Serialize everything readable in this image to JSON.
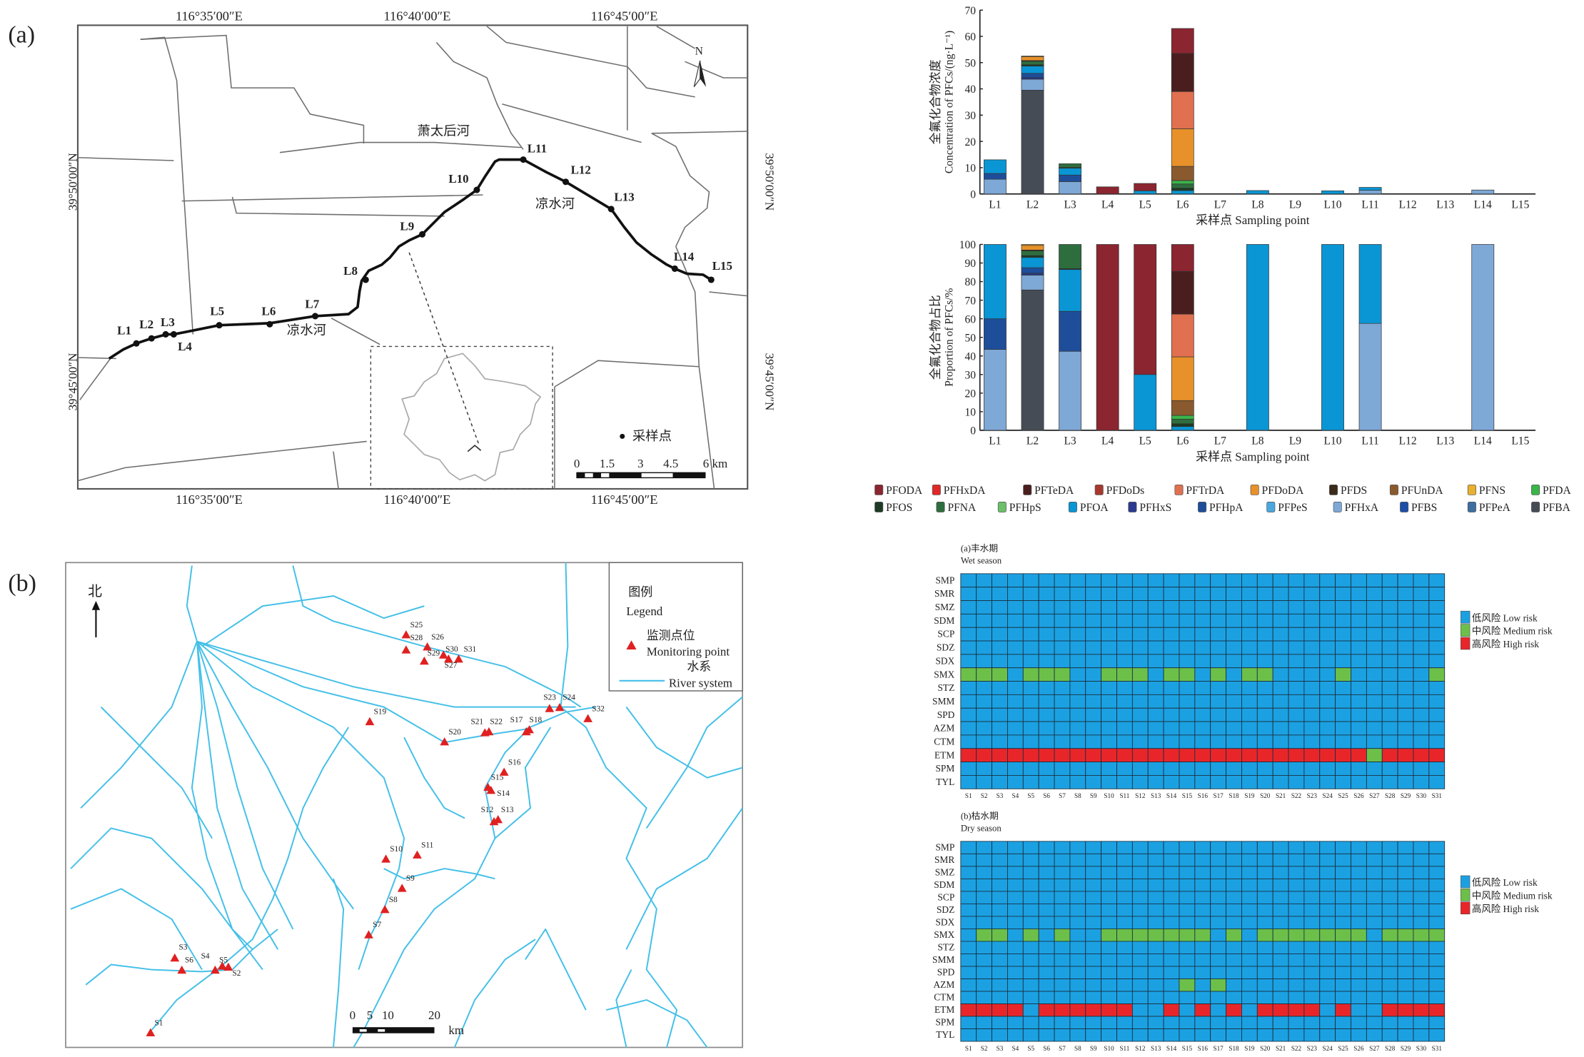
{
  "panel_labels": {
    "a": "(a)",
    "b": "(b)"
  },
  "map_a": {
    "lon_labels": [
      "116°35′00″E",
      "116°40′00″E",
      "116°45′00″E"
    ],
    "lat_labels": [
      "39°50′00″N",
      "39°45′00″N"
    ],
    "river_names": {
      "xiaotaihou": "萧太后河",
      "liangshui_east": "凉水河",
      "liangshui_west": "凉水河"
    },
    "north": "N",
    "legend_label": "采样点",
    "scale_labels": [
      "0",
      "1.5",
      "3",
      "4.5",
      "6 km"
    ],
    "stations": [
      "L1",
      "L2",
      "L3",
      "L4",
      "L5",
      "L6",
      "L7",
      "L8",
      "L9",
      "L10",
      "L11",
      "L12",
      "L13",
      "L14",
      "L15"
    ]
  },
  "map_b": {
    "north": "北",
    "legend": {
      "title_cn": "图例",
      "title_en": "Legend",
      "point_cn": "监测点位",
      "point_en": "Monitoring point",
      "river_cn": "水系",
      "river_en": "River system"
    },
    "scale_labels": [
      "0",
      "5",
      "10",
      "20",
      "km"
    ],
    "stations": [
      "S1",
      "S2",
      "S3",
      "S4",
      "S5",
      "S6",
      "S7",
      "S8",
      "S9",
      "S10",
      "S11",
      "S12",
      "S13",
      "S14",
      "S15",
      "S16",
      "S17",
      "S18",
      "S19",
      "S20",
      "S21",
      "S22",
      "S23",
      "S24",
      "S25",
      "S26",
      "S27",
      "S28",
      "S29",
      "S30",
      "S31",
      "S32"
    ],
    "colors": {
      "river": "#45c0e8",
      "point": "#e02020"
    }
  },
  "compounds": {
    "names": [
      "PFODA",
      "PFHxDA",
      "PFTeDA",
      "PFDoDs",
      "PFTrDA",
      "PFDoDA",
      "PFDS",
      "PFUnDA",
      "PFNS",
      "PFDA",
      "PFOS",
      "PFNA",
      "PFHpS",
      "PFOA",
      "PFHxS",
      "PFHpA",
      "PFPeS",
      "PFHxA",
      "PFBS",
      "PFPeA",
      "PFBA"
    ],
    "colors": [
      "#8b2530",
      "#e02828",
      "#4a1e1e",
      "#a8382e",
      "#e0704f",
      "#e8912a",
      "#3a2a1a",
      "#8a5a2e",
      "#e8b030",
      "#3ab54a",
      "#1e3a24",
      "#2e6e3e",
      "#6cc06a",
      "#0a96d4",
      "#2a3a8e",
      "#1e4e9a",
      "#4aa8e0",
      "#7ea8d6",
      "#1e4ea8",
      "#3e6ea0",
      "#464c56"
    ]
  },
  "chart_data": [
    {
      "type": "bar",
      "stacked": true,
      "ylabel_cn": "全氟化合物浓度",
      "ylabel_en": "Concentration of PFCs/(ng·L⁻¹)",
      "xlabel": "采样点 Sampling point",
      "ylim": [
        0,
        70
      ],
      "yticks": [
        "0",
        "10",
        "20",
        "30",
        "40",
        "50",
        "60",
        "70"
      ],
      "categories": [
        "L1",
        "L2",
        "L3",
        "L4",
        "L5",
        "L6",
        "L7",
        "L8",
        "L9",
        "L10",
        "L11",
        "L12",
        "L13",
        "L14",
        "L15"
      ],
      "stacks": [
        {
          "PFHxA": 5.6,
          "PFHpA": 2.2,
          "PFOA": 5.2
        },
        {
          "PFBA": 39.5,
          "PFHxA": 4.2,
          "PFHxS": 0.6,
          "PFHpA": 1.6,
          "PFOA": 2.8,
          "PFOS": 0.5,
          "PFNA": 1.3,
          "PFDS": 0.3,
          "PFDoDA": 1.5,
          "PFNS": 0.2
        },
        {
          "PFHxA": 4.7,
          "PFHpA": 2.5,
          "PFOA": 2.6,
          "PFOS": 0.3,
          "PFNA": 1.4
        },
        {
          "PFODA": 2.7
        },
        {
          "PFOA": 1.2,
          "PFODA": 2.8
        },
        {
          "PFOA": 1.3,
          "PFOS": 0.9,
          "PFNA": 1.6,
          "PFDA": 1.3,
          "PFUnDA": 5.4,
          "PFDoDA": 14.3,
          "PFTrDA": 14.2,
          "PFTeDA": 14.5,
          "PFODA": 9.5
        },
        {},
        {
          "PFOA": 1.3
        },
        {},
        {
          "PFOA": 1.2
        },
        {
          "PFHxA": 1.4,
          "PFOA": 1.1
        },
        {},
        {},
        {
          "PFHxA": 1.5
        },
        {}
      ]
    },
    {
      "type": "bar",
      "stacked": true,
      "ylabel_cn": "全氟化合物占比",
      "ylabel_en": "Proportion of PFCs/%",
      "xlabel": "采样点 Sampling point",
      "ylim": [
        0,
        100
      ],
      "yticks": [
        "0",
        "10",
        "20",
        "30",
        "40",
        "50",
        "60",
        "70",
        "80",
        "90",
        "100"
      ],
      "categories": [
        "L1",
        "L2",
        "L3",
        "L4",
        "L5",
        "L6",
        "L7",
        "L8",
        "L9",
        "L10",
        "L11",
        "L12",
        "L13",
        "L14",
        "L15"
      ],
      "stacks": [
        {
          "PFHxA": 43.5,
          "PFHpA": 16.5,
          "PFOA": 40
        },
        {
          "PFBA": 75.5,
          "PFHxA": 8,
          "PFHxS": 1,
          "PFHpA": 3,
          "PFOA": 5.5,
          "PFOS": 1,
          "PFNA": 2.5,
          "PFDS": 0.5,
          "PFDoDA": 2.5,
          "PFNS": 0.5
        },
        {
          "PFHxA": 42.5,
          "PFHpA": 21.5,
          "PFOA": 22.5,
          "PFOS": 0.5,
          "PFNA": 13
        },
        {
          "PFODA": 100
        },
        {
          "PFOA": 30,
          "PFODA": 70
        },
        {
          "PFOA": 2,
          "PFOS": 1.5,
          "PFNA": 2.5,
          "PFDA": 2,
          "PFUnDA": 8,
          "PFDoDA": 23.5,
          "PFTrDA": 23,
          "PFTeDA": 23,
          "PFODA": 14.5
        },
        {},
        {
          "PFOA": 100
        },
        {},
        {
          "PFOA": 100
        },
        {
          "PFHxA": 57.5,
          "PFOA": 42.5
        },
        {},
        {},
        {
          "PFHxA": 100
        },
        {}
      ]
    },
    {
      "type": "heatmap",
      "title_cn": "(a)丰水期",
      "title_en": "Wet season",
      "rows": [
        "SMP",
        "SMR",
        "SMZ",
        "SDM",
        "SCP",
        "SDZ",
        "SDX",
        "SMX",
        "STZ",
        "SMM",
        "SPD",
        "AZM",
        "CTM",
        "ETM",
        "SPM",
        "TYL"
      ],
      "columns": [
        "S1",
        "S2",
        "S3",
        "S4",
        "S5",
        "S6",
        "S7",
        "S8",
        "S9",
        "S10",
        "S11",
        "S12",
        "S13",
        "S14",
        "S15",
        "S16",
        "S17",
        "S18",
        "S19",
        "S20",
        "S21",
        "S22",
        "S23",
        "S24",
        "S25",
        "S26",
        "S27",
        "S28",
        "S29",
        "S30",
        "S31"
      ],
      "levels_key": {
        "L": "low",
        "M": "medium",
        "H": "high"
      },
      "values": [
        "LLLLLLLLLLLLLLLLLLLLLLLLLLLLLLL",
        "LLLLLLLLLLLLLLLLLLLLLLLLLLLLLLL",
        "LLLLLLLLLLLLLLLLLLLLLLLLLLLLLLL",
        "LLLLLLLLLLLLLLLLLLLLLLLLLLLLLLL",
        "LLLLLLLLLLLLLLLLLLLLLLLLLLLLLLL",
        "LLLLLLLLLLLLLLLLLLLLLLLLLLLLLLL",
        "LLLLLLLLLLLLLLLLLLLLLLLLLLLLLLL",
        "MMMLMMMLLMMMLMMLMLMMLLLLMLLLLLM",
        "LLLLLLLLLLLLLLLLLLLLLLLLLLLLLLL",
        "LLLLLLLLLLLLLLLLLLLLLLLLLLLLLLL",
        "LLLLLLLLLLLLLLLLLLLLLLLLLLLLLLL",
        "LLLLLLLLLLLLLLLLLLLLLLLLLLLLLLL",
        "LLLLLLLLLLLLLLLLLLLLLLLLLLLLLLL",
        "HHHHHHHHHHHHHHHHHHHHHHHHHHMHHHH",
        "LLLLLLLLLLLLLLLLLLLLLLLLLLLLLLL",
        "LLLLLLLLLLLLLLLLLLLLLLLLLLLLLLL"
      ],
      "legend": [
        "低风险 Low risk",
        "中风险 Medium risk",
        "高风险 High risk"
      ],
      "colors": {
        "L": "#1ba1e2",
        "M": "#6cc04a",
        "H": "#e8262a"
      }
    },
    {
      "type": "heatmap",
      "title_cn": "(b)枯水期",
      "title_en": "Dry season",
      "rows": [
        "SMP",
        "SMR",
        "SMZ",
        "SDM",
        "SCP",
        "SDZ",
        "SDX",
        "SMX",
        "STZ",
        "SMM",
        "SPD",
        "AZM",
        "CTM",
        "ETM",
        "SPM",
        "TYL"
      ],
      "columns": [
        "S1",
        "S2",
        "S3",
        "S4",
        "S5",
        "S6",
        "S7",
        "S8",
        "S9",
        "S10",
        "S11",
        "S12",
        "S13",
        "S14",
        "S15",
        "S16",
        "S17",
        "S18",
        "S19",
        "S20",
        "S21",
        "S22",
        "S23",
        "S24",
        "S25",
        "S26",
        "S27",
        "S28",
        "S29",
        "S30",
        "S31"
      ],
      "levels_key": {
        "L": "low",
        "M": "medium",
        "H": "high"
      },
      "values": [
        "LLLLLLLLLLLLLLLLLLLLLLLLLLLLLLL",
        "LLLLLLLLLLLLLLLLLLLLLLLLLLLLLLL",
        "LLLLLLLLLLLLLLLLLLLLLLLLLLLLLLL",
        "LLLLLLLLLLLLLLLLLLLLLLLLLLLLLLL",
        "LLLLLLLLLLLLLLLLLLLLLLLLLLLLLLL",
        "LLLLLLLLLLLLLLLLLLLLLLLLLLLLLLL",
        "LLLLLLLLLLLLLLLLLLLLLLLLLLLLLLL",
        "LMMLMLMLLMMMMMMMLMLMMMMMMMLMMMM",
        "LLLLLLLLLLLLLLLLLLLLLLLLLLLLLLL",
        "LLLLLLLLLLLLLLLLLLLLLLLLLLLLLLL",
        "LLLLLLLLLLLLLLLLLLLLLLLLLLLLLLL",
        "LLLLLLLLLLLLLLMLMLLLLLLLLLLLLLL",
        "LLLLLLLLLLLLLLLLLLLLLLLLLLLLLLL",
        "HHHHLHHHHHHLLHLHLHLHHHHLHLLHHHH",
        "LLLLLLLLLLLLLLLLLLLLLLLLLLLLLLL",
        "LLLLLLLLLLLLLLLLLLLLLLLLLLLLLLL"
      ],
      "legend": [
        "低风险 Low risk",
        "中风险 Medium risk",
        "高风险 High risk"
      ],
      "colors": {
        "L": "#1ba1e2",
        "M": "#6cc04a",
        "H": "#e8262a"
      }
    }
  ]
}
